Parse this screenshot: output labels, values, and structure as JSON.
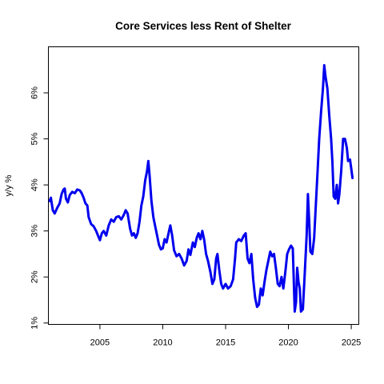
{
  "chart_data": {
    "type": "line",
    "title": "Core Services less Rent of Shelter",
    "xlabel": "",
    "ylabel": "y/y %",
    "xlim": [
      2000.9,
      2025.6
    ],
    "ylim": [
      0.97,
      7.0
    ],
    "x_ticks": [
      2005,
      2010,
      2015,
      2020,
      2025
    ],
    "x_tick_labels": [
      "2005",
      "2010",
      "2015",
      "2020",
      "2025"
    ],
    "y_ticks": [
      1,
      2,
      3,
      4,
      5,
      6
    ],
    "y_tick_labels": [
      "1%",
      "2%",
      "3%",
      "4%",
      "5%",
      "6%"
    ],
    "grid": false,
    "legend": "none",
    "series": [
      {
        "color": "#0000ee",
        "points": [
          [
            2001.0,
            3.65
          ],
          [
            2001.1,
            3.72
          ],
          [
            2001.25,
            3.45
          ],
          [
            2001.4,
            3.38
          ],
          [
            2001.6,
            3.5
          ],
          [
            2001.8,
            3.6
          ],
          [
            2001.95,
            3.8
          ],
          [
            2002.1,
            3.9
          ],
          [
            2002.2,
            3.92
          ],
          [
            2002.3,
            3.7
          ],
          [
            2002.45,
            3.62
          ],
          [
            2002.6,
            3.78
          ],
          [
            2002.8,
            3.85
          ],
          [
            2003.0,
            3.82
          ],
          [
            2003.2,
            3.9
          ],
          [
            2003.4,
            3.88
          ],
          [
            2003.55,
            3.82
          ],
          [
            2003.7,
            3.72
          ],
          [
            2003.85,
            3.6
          ],
          [
            2004.0,
            3.55
          ],
          [
            2004.1,
            3.3
          ],
          [
            2004.3,
            3.15
          ],
          [
            2004.5,
            3.1
          ],
          [
            2004.7,
            3.0
          ],
          [
            2004.85,
            2.9
          ],
          [
            2005.0,
            2.8
          ],
          [
            2005.15,
            2.95
          ],
          [
            2005.3,
            3.0
          ],
          [
            2005.5,
            2.9
          ],
          [
            2005.7,
            3.12
          ],
          [
            2005.9,
            3.25
          ],
          [
            2006.1,
            3.2
          ],
          [
            2006.3,
            3.3
          ],
          [
            2006.5,
            3.32
          ],
          [
            2006.7,
            3.25
          ],
          [
            2006.9,
            3.35
          ],
          [
            2007.05,
            3.45
          ],
          [
            2007.2,
            3.38
          ],
          [
            2007.4,
            3.05
          ],
          [
            2007.55,
            2.9
          ],
          [
            2007.7,
            2.95
          ],
          [
            2007.85,
            2.85
          ],
          [
            2008.0,
            2.95
          ],
          [
            2008.15,
            3.2
          ],
          [
            2008.3,
            3.55
          ],
          [
            2008.45,
            3.75
          ],
          [
            2008.6,
            4.1
          ],
          [
            2008.75,
            4.3
          ],
          [
            2008.85,
            4.52
          ],
          [
            2008.95,
            4.2
          ],
          [
            2009.1,
            3.65
          ],
          [
            2009.25,
            3.3
          ],
          [
            2009.4,
            3.1
          ],
          [
            2009.55,
            2.9
          ],
          [
            2009.7,
            2.7
          ],
          [
            2009.85,
            2.6
          ],
          [
            2010.0,
            2.62
          ],
          [
            2010.15,
            2.82
          ],
          [
            2010.3,
            2.75
          ],
          [
            2010.5,
            3.0
          ],
          [
            2010.6,
            3.12
          ],
          [
            2010.75,
            2.9
          ],
          [
            2010.9,
            2.58
          ],
          [
            2011.1,
            2.45
          ],
          [
            2011.3,
            2.5
          ],
          [
            2011.5,
            2.4
          ],
          [
            2011.7,
            2.25
          ],
          [
            2011.9,
            2.35
          ],
          [
            2012.05,
            2.6
          ],
          [
            2012.2,
            2.48
          ],
          [
            2012.4,
            2.75
          ],
          [
            2012.55,
            2.65
          ],
          [
            2012.7,
            2.85
          ],
          [
            2012.85,
            2.95
          ],
          [
            2013.0,
            2.82
          ],
          [
            2013.15,
            3.0
          ],
          [
            2013.3,
            2.8
          ],
          [
            2013.45,
            2.5
          ],
          [
            2013.6,
            2.35
          ],
          [
            2013.8,
            2.1
          ],
          [
            2013.95,
            1.85
          ],
          [
            2014.1,
            1.95
          ],
          [
            2014.25,
            2.4
          ],
          [
            2014.35,
            2.5
          ],
          [
            2014.5,
            2.15
          ],
          [
            2014.65,
            1.85
          ],
          [
            2014.8,
            1.75
          ],
          [
            2015.0,
            1.85
          ],
          [
            2015.2,
            1.75
          ],
          [
            2015.4,
            1.8
          ],
          [
            2015.6,
            1.95
          ],
          [
            2015.75,
            2.4
          ],
          [
            2015.85,
            2.75
          ],
          [
            2016.05,
            2.82
          ],
          [
            2016.25,
            2.78
          ],
          [
            2016.45,
            2.9
          ],
          [
            2016.6,
            2.95
          ],
          [
            2016.75,
            2.4
          ],
          [
            2016.9,
            2.3
          ],
          [
            2017.05,
            2.5
          ],
          [
            2017.2,
            1.95
          ],
          [
            2017.35,
            1.55
          ],
          [
            2017.5,
            1.35
          ],
          [
            2017.65,
            1.4
          ],
          [
            2017.8,
            1.75
          ],
          [
            2017.95,
            1.6
          ],
          [
            2018.1,
            1.9
          ],
          [
            2018.25,
            2.15
          ],
          [
            2018.4,
            2.35
          ],
          [
            2018.55,
            2.55
          ],
          [
            2018.7,
            2.45
          ],
          [
            2018.85,
            2.5
          ],
          [
            2019.0,
            2.2
          ],
          [
            2019.15,
            1.85
          ],
          [
            2019.3,
            1.8
          ],
          [
            2019.45,
            2.0
          ],
          [
            2019.6,
            1.75
          ],
          [
            2019.75,
            2.1
          ],
          [
            2019.9,
            2.5
          ],
          [
            2020.05,
            2.6
          ],
          [
            2020.2,
            2.68
          ],
          [
            2020.35,
            2.62
          ],
          [
            2020.5,
            1.25
          ],
          [
            2020.6,
            1.45
          ],
          [
            2020.7,
            2.2
          ],
          [
            2020.8,
            1.9
          ],
          [
            2020.9,
            1.75
          ],
          [
            2021.0,
            1.25
          ],
          [
            2021.15,
            1.3
          ],
          [
            2021.3,
            2.1
          ],
          [
            2021.45,
            2.9
          ],
          [
            2021.55,
            3.8
          ],
          [
            2021.65,
            3.2
          ],
          [
            2021.75,
            2.55
          ],
          [
            2021.9,
            2.5
          ],
          [
            2022.05,
            2.85
          ],
          [
            2022.15,
            3.4
          ],
          [
            2022.3,
            4.2
          ],
          [
            2022.45,
            5.0
          ],
          [
            2022.6,
            5.6
          ],
          [
            2022.75,
            6.1
          ],
          [
            2022.85,
            6.6
          ],
          [
            2022.95,
            6.35
          ],
          [
            2023.1,
            6.1
          ],
          [
            2023.25,
            5.5
          ],
          [
            2023.4,
            5.0
          ],
          [
            2023.5,
            4.5
          ],
          [
            2023.6,
            3.75
          ],
          [
            2023.72,
            3.7
          ],
          [
            2023.85,
            4.0
          ],
          [
            2023.95,
            3.6
          ],
          [
            2024.05,
            3.8
          ],
          [
            2024.2,
            4.3
          ],
          [
            2024.35,
            5.0
          ],
          [
            2024.5,
            5.0
          ],
          [
            2024.65,
            4.8
          ],
          [
            2024.75,
            4.52
          ],
          [
            2024.9,
            4.55
          ],
          [
            2025.0,
            4.35
          ],
          [
            2025.1,
            4.15
          ]
        ]
      }
    ]
  }
}
